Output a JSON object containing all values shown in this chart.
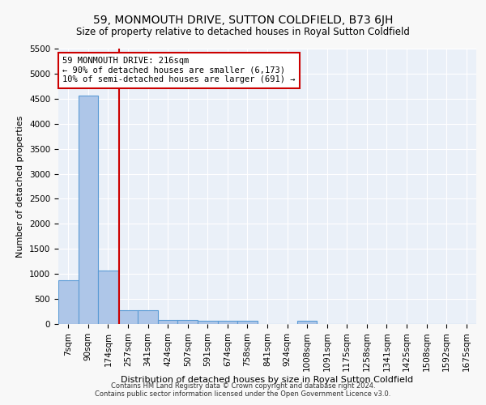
{
  "title": "59, MONMOUTH DRIVE, SUTTON COLDFIELD, B73 6JH",
  "subtitle": "Size of property relative to detached houses in Royal Sutton Coldfield",
  "xlabel": "Distribution of detached houses by size in Royal Sutton Coldfield",
  "ylabel": "Number of detached properties",
  "footer_line1": "Contains HM Land Registry data © Crown copyright and database right 2024.",
  "footer_line2": "Contains public sector information licensed under the Open Government Licence v3.0.",
  "bin_labels": [
    "7sqm",
    "90sqm",
    "174sqm",
    "257sqm",
    "341sqm",
    "424sqm",
    "507sqm",
    "591sqm",
    "674sqm",
    "758sqm",
    "841sqm",
    "924sqm",
    "1008sqm",
    "1091sqm",
    "1175sqm",
    "1258sqm",
    "1341sqm",
    "1425sqm",
    "1508sqm",
    "1592sqm",
    "1675sqm"
  ],
  "bin_values": [
    870,
    4560,
    1060,
    270,
    270,
    85,
    80,
    65,
    60,
    60,
    0,
    0,
    60,
    0,
    0,
    0,
    0,
    0,
    0,
    0,
    0
  ],
  "bar_color": "#aec6e8",
  "bar_edge_color": "#5b9bd5",
  "red_line_x": 2.55,
  "annotation_text": "59 MONMOUTH DRIVE: 216sqm\n← 90% of detached houses are smaller (6,173)\n10% of semi-detached houses are larger (691) →",
  "annotation_box_color": "#ffffff",
  "annotation_box_edge": "#cc0000",
  "red_line_color": "#cc0000",
  "ylim": [
    0,
    5500
  ],
  "yticks": [
    0,
    500,
    1000,
    1500,
    2000,
    2500,
    3000,
    3500,
    4000,
    4500,
    5000,
    5500
  ],
  "bg_color": "#eaf0f8",
  "grid_color": "#ffffff",
  "title_fontsize": 10,
  "subtitle_fontsize": 8.5,
  "axis_label_fontsize": 8,
  "tick_fontsize": 7.5,
  "annotation_fontsize": 7.5,
  "footer_fontsize": 6
}
